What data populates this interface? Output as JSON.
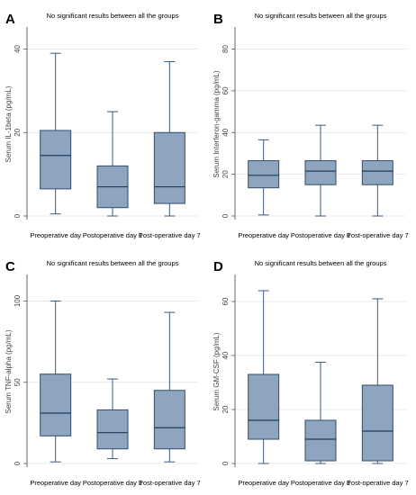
{
  "colors": {
    "box_fill": "#8fa5bf",
    "box_stroke": "#2f4d6e",
    "median": "#1e3a5c",
    "whisker": "#3b5a7c",
    "axis": "#555555",
    "grid": "#e3e3e3"
  },
  "chart_data": [
    {
      "type": "box",
      "panel_letter": "A",
      "note": "No significant results between all the groups",
      "ylabel": "Serum IL-1beta (pg/mL)",
      "ylim": [
        0,
        44
      ],
      "yticks": [
        0,
        20,
        40
      ],
      "grid": true,
      "categories": [
        "Preoperative day",
        "Postoperative day 1",
        "Post-operative day 7"
      ],
      "boxes": [
        {
          "min": 0.5,
          "q1": 6.5,
          "median": 14.5,
          "q3": 20.5,
          "max": 39
        },
        {
          "min": 0,
          "q1": 2,
          "median": 7,
          "q3": 12,
          "max": 25
        },
        {
          "min": 0,
          "q1": 3,
          "median": 7,
          "q3": 20,
          "max": 37
        }
      ]
    },
    {
      "type": "box",
      "panel_letter": "B",
      "note": "No significant results between all the groups",
      "ylabel": "Serum Interferon-gamma (pg/mL)",
      "ylim": [
        0,
        88
      ],
      "yticks": [
        0,
        20,
        40,
        60,
        80
      ],
      "grid": true,
      "categories": [
        "Preoperative day",
        "Postoperative day 1",
        "Post-operative day 7"
      ],
      "boxes": [
        {
          "min": 0.5,
          "q1": 13.5,
          "median": 19.5,
          "q3": 26.5,
          "max": 36.5
        },
        {
          "min": 0,
          "q1": 15,
          "median": 21.5,
          "q3": 26.5,
          "max": 43.5
        },
        {
          "min": 0,
          "q1": 15,
          "median": 21.5,
          "q3": 26.5,
          "max": 43.5
        }
      ]
    },
    {
      "type": "box",
      "panel_letter": "C",
      "note": "No significant results between all the groups",
      "ylabel": "Serum TNF-alpha (pg/mL)",
      "ylim": [
        0,
        113
      ],
      "yticks": [
        0,
        50,
        100
      ],
      "grid": true,
      "categories": [
        "Preoperative day",
        "Postoperative day 1",
        "Post-operative day 7"
      ],
      "boxes": [
        {
          "min": 1,
          "q1": 17,
          "median": 31,
          "q3": 55,
          "max": 100
        },
        {
          "min": 3,
          "q1": 9,
          "median": 19,
          "q3": 33,
          "max": 52
        },
        {
          "min": 1,
          "q1": 9,
          "median": 22,
          "q3": 45,
          "max": 93
        }
      ]
    },
    {
      "type": "box",
      "panel_letter": "D",
      "note": "No significant results between all the groups",
      "ylabel": "Serum GM-CSF (pg/mL)",
      "ylim": [
        0,
        68
      ],
      "yticks": [
        0,
        20,
        40,
        60
      ],
      "grid": true,
      "categories": [
        "Preoperative day",
        "Postoperative day 1",
        "Post-operative day 7"
      ],
      "boxes": [
        {
          "min": 0,
          "q1": 9,
          "median": 16,
          "q3": 33,
          "max": 64
        },
        {
          "min": 0,
          "q1": 1,
          "median": 9,
          "q3": 16,
          "max": 37.5
        },
        {
          "min": 0,
          "q1": 1,
          "median": 12,
          "q3": 29,
          "max": 61
        }
      ]
    }
  ]
}
